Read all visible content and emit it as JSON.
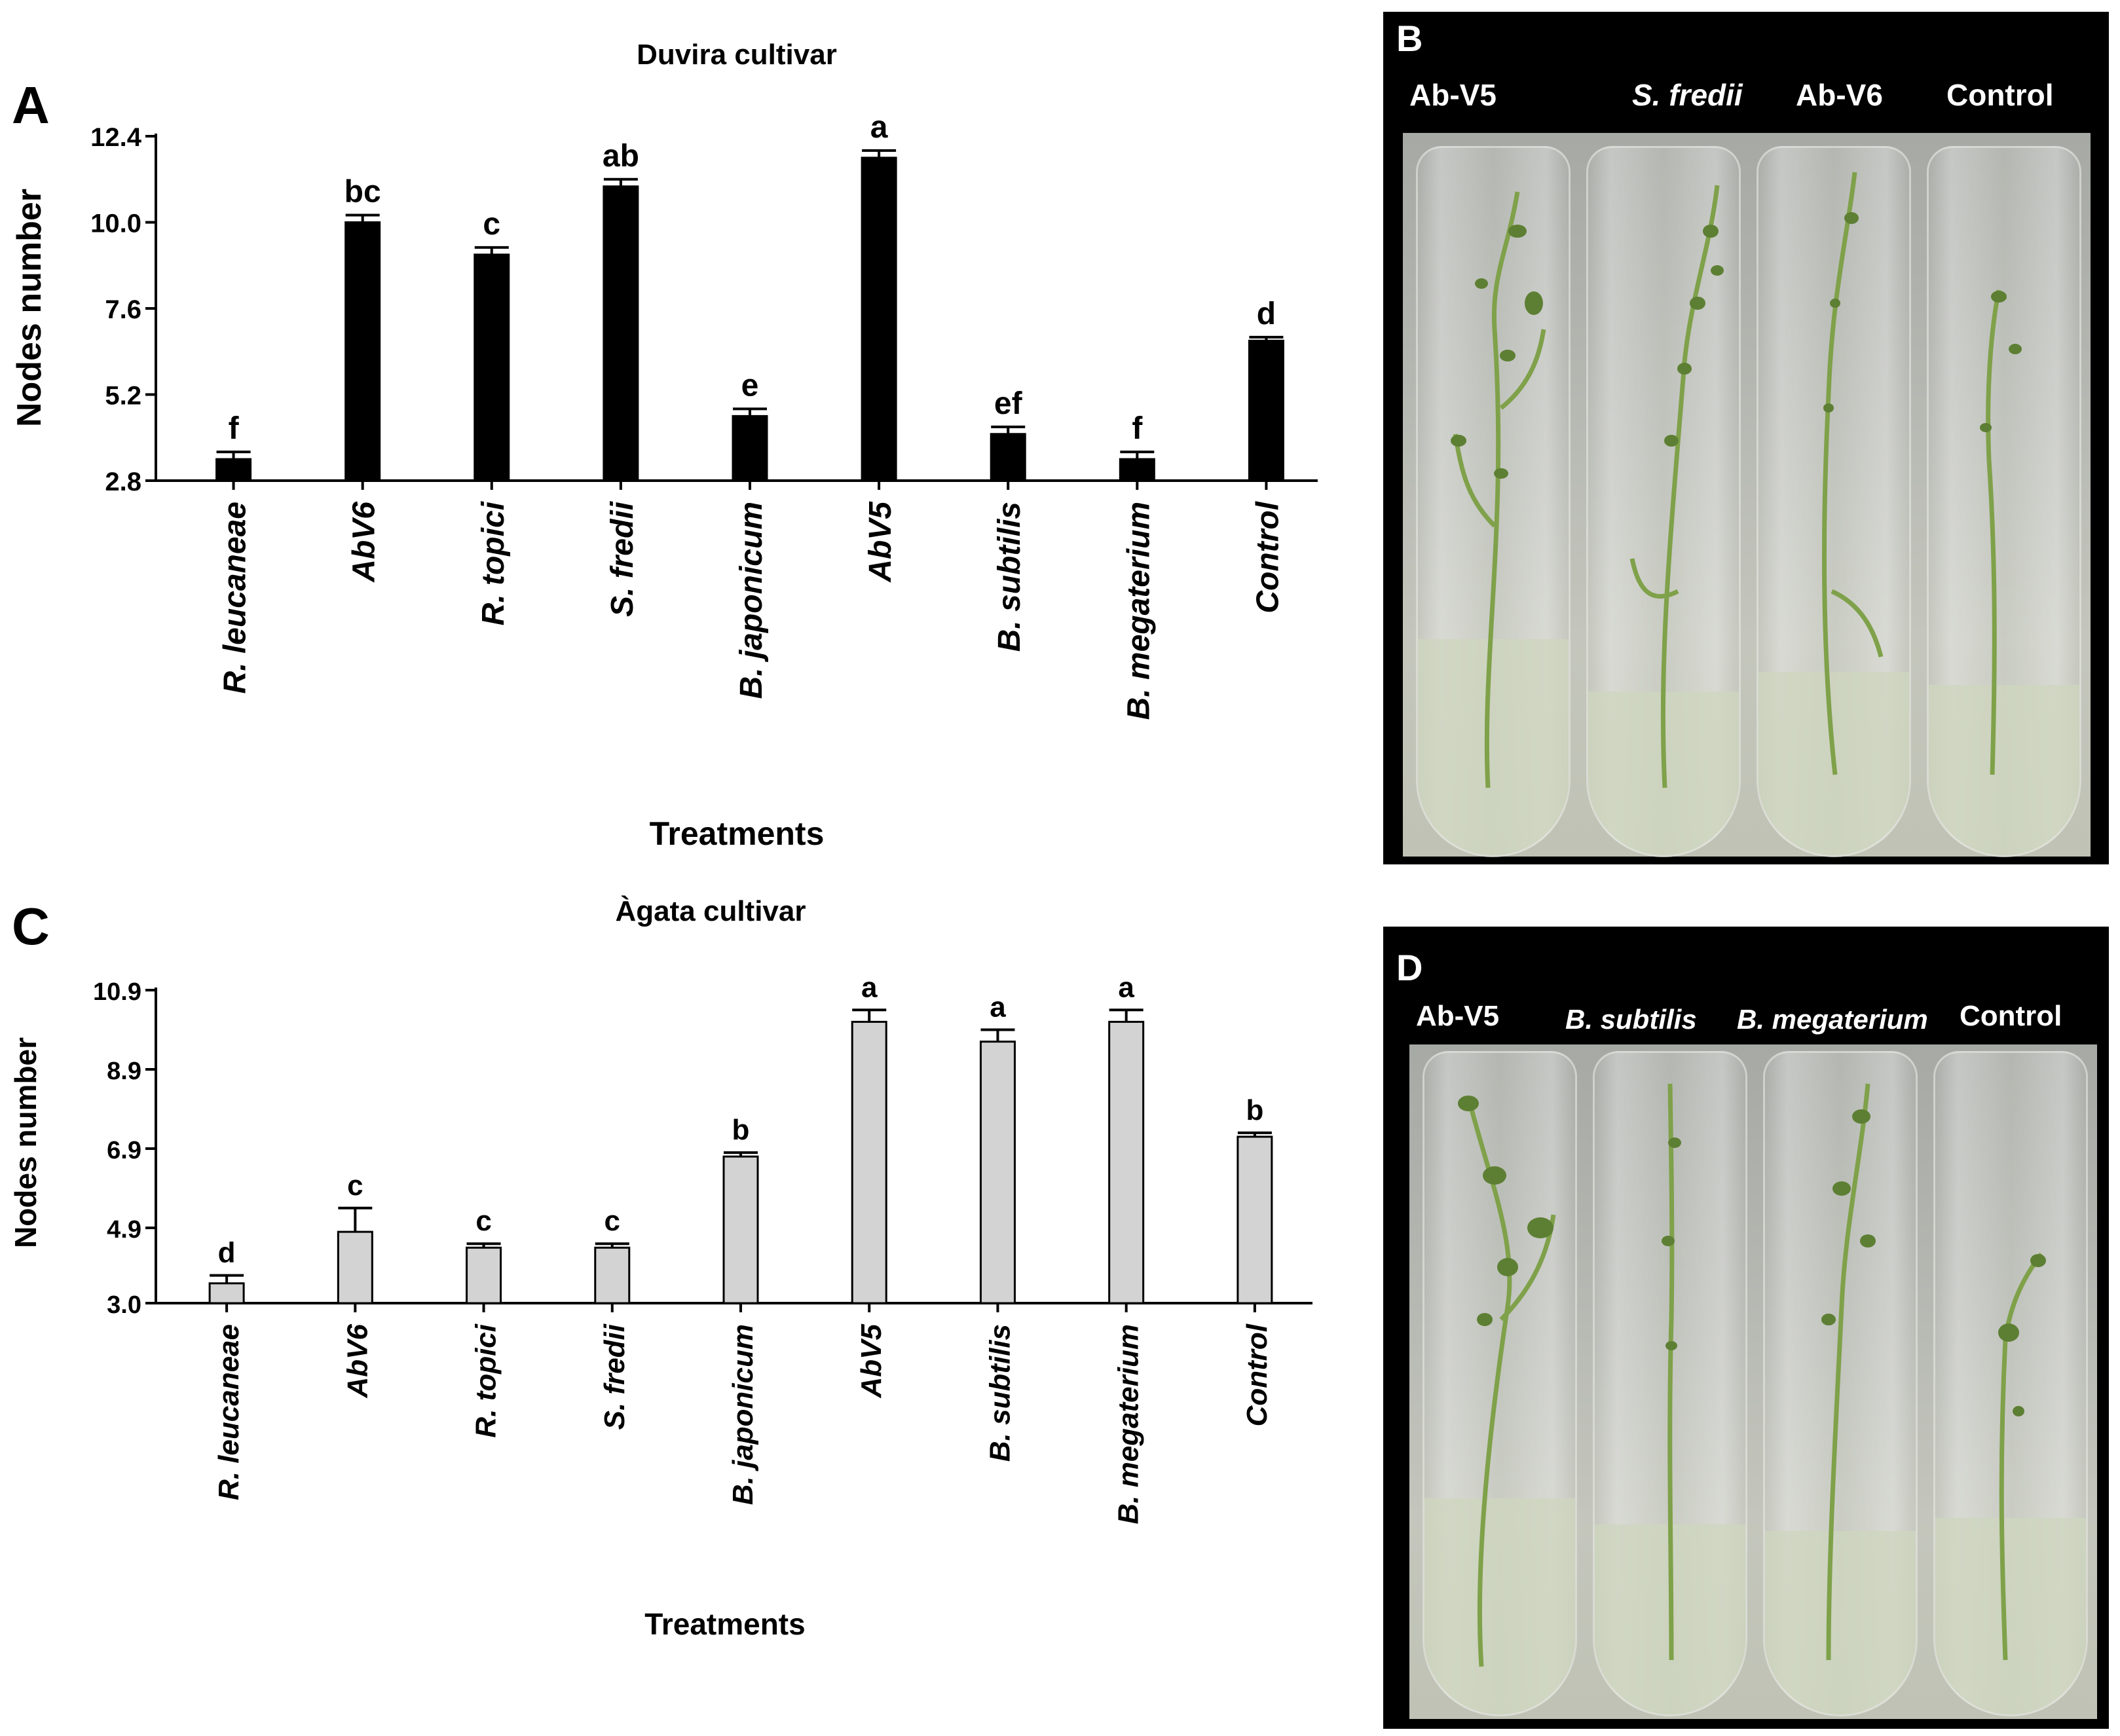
{
  "chart_data": [
    {
      "type": "bar",
      "panel": "A",
      "title": "Duvira cultivar",
      "xlabel": "Treatments",
      "ylabel": "Nodes number",
      "ylim": [
        2.8,
        12.4
      ],
      "yticks": [
        "2.8",
        "5.2",
        "7.6",
        "10.0",
        "12.4"
      ],
      "categories": [
        "R. leucaneae",
        "AbV6",
        "R. topici",
        "S. fredii",
        "B. japonicum",
        "AbV5",
        "B. subtilis",
        "B. megaterium",
        "Control"
      ],
      "values": [
        3.4,
        10.0,
        9.1,
        11.0,
        4.6,
        11.8,
        4.1,
        3.4,
        6.7
      ],
      "errors": [
        0.2,
        0.2,
        0.2,
        0.2,
        0.2,
        0.2,
        0.2,
        0.2,
        0.1
      ],
      "letters": [
        "f",
        "bc",
        "c",
        "ab",
        "e",
        "a",
        "ef",
        "f",
        "d"
      ],
      "bar_color": "#000000"
    },
    {
      "type": "bar",
      "panel": "C",
      "title": "Àgata cultivar",
      "xlabel": "Treatments",
      "ylabel": "Nodes number",
      "ylim": [
        3.0,
        10.9
      ],
      "yticks": [
        "3.0",
        "4.9",
        "6.9",
        "8.9",
        "10.9"
      ],
      "categories": [
        "R. leucaneae",
        "AbV6",
        "R. topici",
        "S. fredii",
        "B. japonicum",
        "AbV5",
        "B. subtilis",
        "B. megaterium",
        "Control"
      ],
      "values": [
        3.5,
        4.8,
        4.4,
        4.4,
        6.7,
        10.1,
        9.6,
        10.1,
        7.2
      ],
      "errors": [
        0.2,
        0.6,
        0.1,
        0.1,
        0.1,
        0.3,
        0.3,
        0.3,
        0.1
      ],
      "letters": [
        "d",
        "c",
        "c",
        "c",
        "b",
        "a",
        "a",
        "a",
        "b"
      ],
      "bar_color": "#d3d3d3"
    }
  ],
  "photos": [
    {
      "panel": "B",
      "labels": [
        "Ab-V5",
        "S. fredii",
        "Ab-V6",
        "Control"
      ],
      "italic": [
        false,
        true,
        false,
        false
      ]
    },
    {
      "panel": "D",
      "labels": [
        "Ab-V5",
        "B. subtilis",
        "B. megaterium",
        "Control"
      ],
      "italic": [
        false,
        true,
        true,
        false
      ]
    }
  ],
  "colors": {
    "photo_background": "#000000",
    "label_color": "#ffffff",
    "plant_green": "#6f9a3c"
  }
}
